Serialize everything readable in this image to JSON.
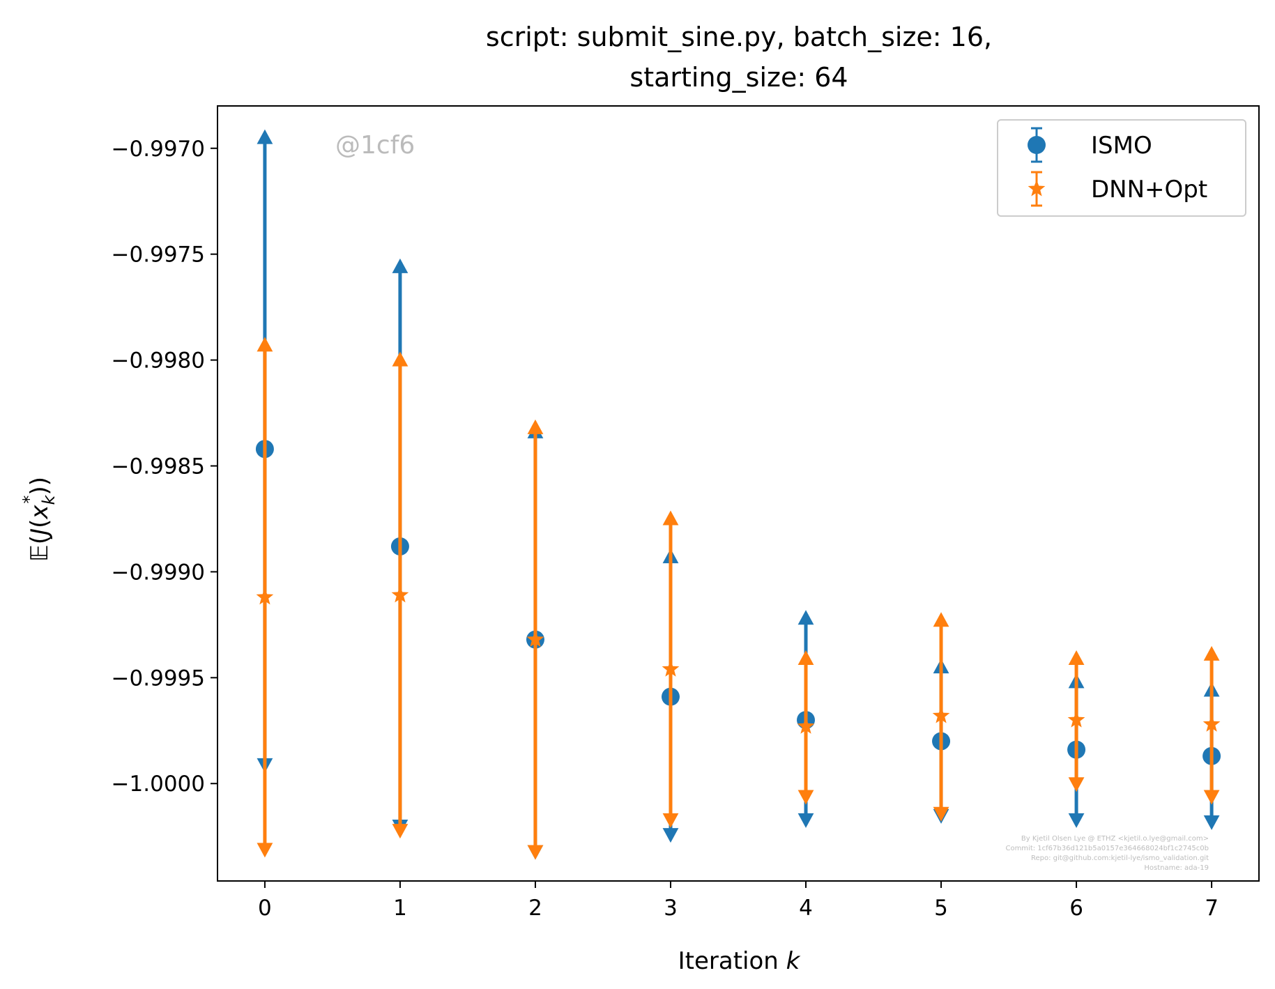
{
  "chart_data": {
    "type": "errorbar",
    "title_lines": [
      "script: submit_sine.py, batch_size: 16,",
      "starting_size: 64"
    ],
    "xlabel": "Iteration k",
    "ylabel": "𝔼(J(x*_k))",
    "xlim": [
      -0.35,
      7.35
    ],
    "ylim": [
      -1.00046,
      -0.9968
    ],
    "x_ticks": [
      0,
      1,
      2,
      3,
      4,
      5,
      6,
      7
    ],
    "x_tick_labels": [
      "0",
      "1",
      "2",
      "3",
      "4",
      "5",
      "6",
      "7"
    ],
    "y_ticks": [
      -0.997,
      -0.9975,
      -0.998,
      -0.9985,
      -0.999,
      -0.9995,
      -1.0
    ],
    "y_tick_labels": [
      "−0.9970",
      "−0.9975",
      "−0.9980",
      "−0.9985",
      "−0.9990",
      "−0.9995",
      "−1.0000"
    ],
    "grid": false,
    "legend_position": "top-right",
    "series": [
      {
        "name": "ISMO",
        "color": "#1f77b4",
        "marker": "circle",
        "x": [
          0,
          1,
          2,
          3,
          4,
          5,
          6,
          7
        ],
        "y": [
          -0.99842,
          -0.99888,
          -0.99932,
          -0.99959,
          -0.9997,
          -0.9998,
          -0.99984,
          -0.99987
        ],
        "y_upper": [
          -0.99695,
          -0.99756,
          -0.99834,
          -0.99893,
          -0.99922,
          -0.99945,
          -0.99952,
          -0.99956
        ],
        "y_lower": [
          -0.99991,
          -1.0002,
          -1.00032,
          -1.00024,
          -1.00017,
          -1.00015,
          -1.00017,
          -1.00018
        ]
      },
      {
        "name": "DNN+Opt",
        "color": "#ff7f0e",
        "marker": "star",
        "x": [
          0,
          1,
          2,
          3,
          4,
          5,
          6,
          7
        ],
        "y": [
          -0.99912,
          -0.99911,
          -0.99932,
          -0.99946,
          -0.99973,
          -0.99968,
          -0.9997,
          -0.99972
        ],
        "y_upper": [
          -0.99793,
          -0.998,
          -0.99832,
          -0.99875,
          -0.99941,
          -0.99923,
          -0.99941,
          -0.99939
        ],
        "y_lower": [
          -1.00031,
          -1.00022,
          -1.00032,
          -1.00017,
          -1.00006,
          -1.00014,
          -1.0,
          -1.00006
        ]
      }
    ],
    "annotations": {
      "watermark": "@1cf6",
      "footnote": [
        "By Kjetil Olsen Lye @ ETHZ <kjetil.o.lye@gmail.com>",
        "Commit: 1cf67b36d121b5a0157e364668024bf1c2745c0b",
        "Repo: git@github.com:kjetil-lye/ismo_validation.git",
        "Hostname: ada-19"
      ]
    }
  }
}
